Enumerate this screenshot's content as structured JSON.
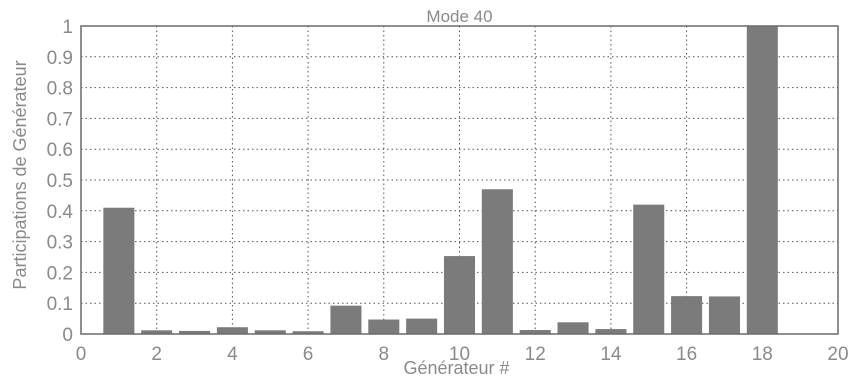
{
  "chart_data": {
    "type": "bar",
    "title": "Mode 40",
    "xlabel": "Générateur #",
    "ylabel": "Participations de Générateur",
    "xlim": [
      0,
      20
    ],
    "ylim": [
      0,
      1
    ],
    "grid": true,
    "x_ticks": [
      "0",
      "2",
      "4",
      "6",
      "8",
      "10",
      "12",
      "14",
      "16",
      "18",
      "20"
    ],
    "y_ticks": [
      "0",
      "0.1",
      "0.2",
      "0.3",
      "0.4",
      "0.5",
      "0.6",
      "0.7",
      "0.8",
      "0.9",
      "1"
    ],
    "x": [
      1,
      2,
      3,
      4,
      5,
      6,
      7,
      8,
      9,
      10,
      11,
      12,
      13,
      14,
      15,
      16,
      17,
      18
    ],
    "values": [
      0.41,
      0.012,
      0.01,
      0.022,
      0.012,
      0.009,
      0.092,
      0.047,
      0.05,
      0.253,
      0.47,
      0.013,
      0.038,
      0.016,
      0.42,
      0.123,
      0.122,
      1.0
    ],
    "bar_color": "#7b7b7b"
  }
}
